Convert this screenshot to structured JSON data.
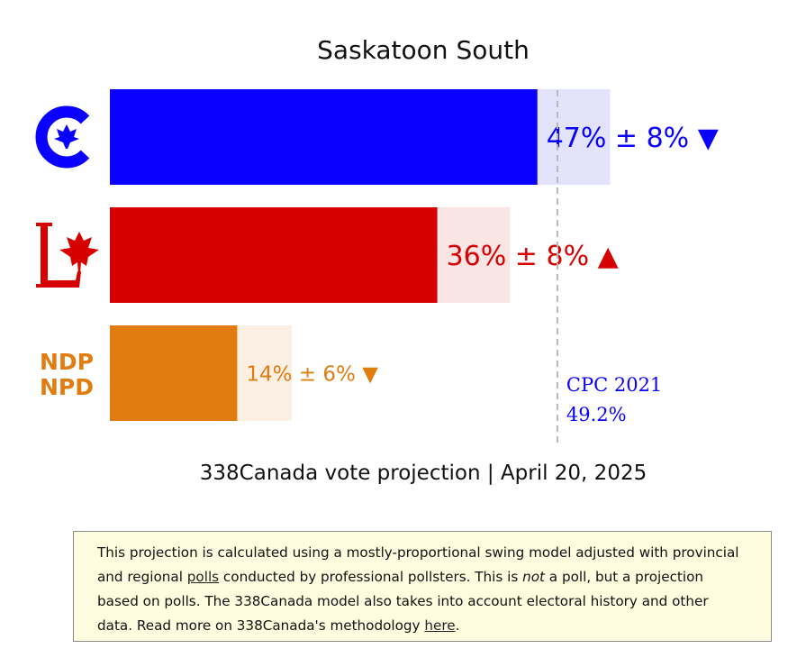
{
  "chart_data": {
    "type": "bar",
    "title": "Saskatoon South",
    "subtitle": "338Canada vote projection | April 20, 2025",
    "xlim": [
      0,
      100
    ],
    "series": [
      {
        "party": "CPC",
        "logo": "cpc-logo",
        "value": 47,
        "margin": 8,
        "label": "47% ± 8%",
        "trend": "▼",
        "color": "#0a00ff",
        "light": "#e4e3fc",
        "logo_text": ""
      },
      {
        "party": "LPC",
        "logo": "lpc-logo",
        "value": 36,
        "margin": 8,
        "label": "36% ± 8%",
        "trend": "▲",
        "color": "#d60000",
        "light": "#fae5e5",
        "logo_text": ""
      },
      {
        "party": "NDP",
        "logo": "ndp-logo",
        "value": 14,
        "margin": 6,
        "label": "14% ± 6%",
        "trend": "▼",
        "color": "#e07c10",
        "light": "#fcf0e5",
        "logo_text": "NDP NPD"
      }
    ],
    "reference": {
      "label": "CPC 2021",
      "value": 49.2,
      "value_label": "49.2%",
      "color": "#0a00ff"
    }
  },
  "note": {
    "part1": "This projection is calculated using a mostly-proportional swing model adjusted with provincial and regional ",
    "link1": "polls",
    "part2": " conducted by professional pollsters. This is ",
    "emph": "not",
    "part3": " a poll, but a projection based on polls. The 338Canada model also takes into account electoral history and other data. Read more on 338Canada's methodology ",
    "link2": "here",
    "part4": "."
  }
}
